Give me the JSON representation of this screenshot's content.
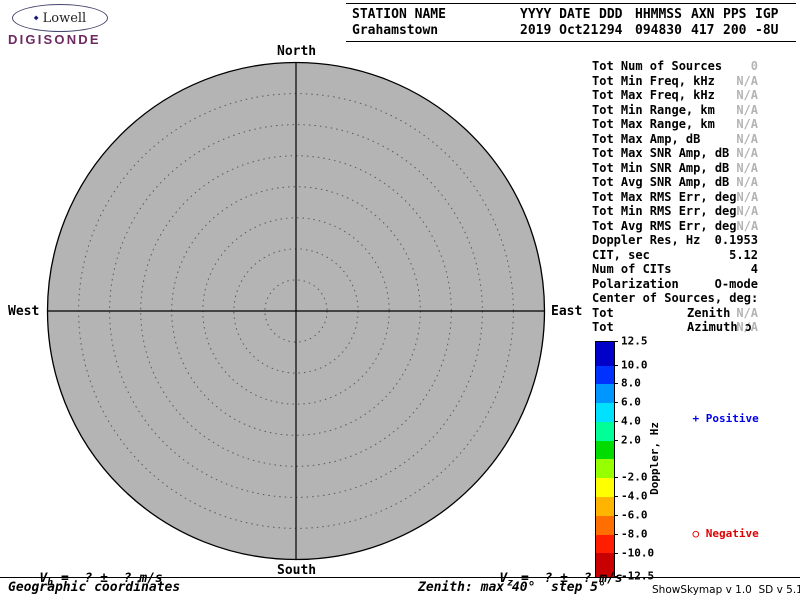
{
  "logo": {
    "mark": "◆",
    "name": "Lowell",
    "product": "DIGISONDE"
  },
  "header": {
    "fields": [
      {
        "label": "STATION NAME",
        "value": "Grahamstown"
      },
      {
        "label": "YYYY DATE",
        "value": "2019 Oct21"
      },
      {
        "label": "DDD",
        "value": "294"
      },
      {
        "label": "HHMMSS",
        "value": "094830"
      },
      {
        "label": "AXN",
        "value": "417"
      },
      {
        "label": "PPS",
        "value": "200"
      },
      {
        "label": "IGP",
        "value": "-8U"
      }
    ]
  },
  "compass": {
    "north": "North",
    "south": "South",
    "east": "East",
    "west": "West"
  },
  "skymap": {
    "fill_color": "#b4b4b4",
    "zenith_max_deg": 40,
    "zenith_step_deg": 5,
    "num_sources": 0
  },
  "stats": {
    "rows": [
      {
        "label": "Tot Num of Sources",
        "value": "0",
        "muted": true
      },
      {
        "label": "Tot Min Freq, kHz",
        "value": "N/A",
        "muted": true
      },
      {
        "label": "Tot Max Freq, kHz",
        "value": "N/A",
        "muted": true
      },
      {
        "label": "Tot Min Range, km",
        "value": "N/A",
        "muted": true
      },
      {
        "label": "Tot Max Range, km",
        "value": "N/A",
        "muted": true
      },
      {
        "label": "Tot Max Amp, dB",
        "value": "N/A",
        "muted": true
      },
      {
        "label": "Tot Max SNR Amp, dB",
        "value": "N/A",
        "muted": true
      },
      {
        "label": "Tot Min SNR Amp, dB",
        "value": "N/A",
        "muted": true
      },
      {
        "label": "Tot Avg SNR Amp, dB",
        "value": "N/A",
        "muted": true
      },
      {
        "label": "Tot Max RMS Err, deg",
        "value": "N/A",
        "muted": true
      },
      {
        "label": "Tot Min RMS Err, deg",
        "value": "N/A",
        "muted": true
      },
      {
        "label": "Tot Avg RMS Err, deg",
        "value": "N/A",
        "muted": true
      },
      {
        "label": "Doppler Res, Hz",
        "value": "0.1953",
        "muted": false
      },
      {
        "label": "CIT, sec",
        "value": "5.12",
        "muted": false
      },
      {
        "label": "Num of CITs",
        "value": "4",
        "muted": false
      },
      {
        "label": "Polarization",
        "value": "O-mode",
        "muted": false
      },
      {
        "label": "Center of Sources, deg:",
        "value": "",
        "muted": false
      },
      {
        "label": "Tot",
        "param": "Zenith",
        "value": "N/A",
        "muted": true
      },
      {
        "label": "Tot",
        "param": "Azimuth ɔ",
        "value": "N/A",
        "muted": true
      }
    ]
  },
  "colorbar": {
    "title": "Doppler, Hz",
    "max": 12.5,
    "min": -12.5,
    "segments": [
      {
        "from": 12.5,
        "to": 10.0,
        "color": "#0000c8"
      },
      {
        "from": 10.0,
        "to": 8.0,
        "color": "#0032ff"
      },
      {
        "from": 8.0,
        "to": 6.0,
        "color": "#0096ff"
      },
      {
        "from": 6.0,
        "to": 4.0,
        "color": "#00e1ff"
      },
      {
        "from": 4.0,
        "to": 2.0,
        "color": "#00ff96"
      },
      {
        "from": 2.0,
        "to": 0.0,
        "color": "#00dc00"
      },
      {
        "from": 0.0,
        "to": -2.0,
        "color": "#96ff00"
      },
      {
        "from": -2.0,
        "to": -4.0,
        "color": "#ffff00"
      },
      {
        "from": -4.0,
        "to": -6.0,
        "color": "#ffb400"
      },
      {
        "from": -6.0,
        "to": -8.0,
        "color": "#ff6e00"
      },
      {
        "from": -8.0,
        "to": -10.0,
        "color": "#ff1e00"
      },
      {
        "from": -10.0,
        "to": -12.5,
        "color": "#c80000"
      }
    ],
    "ticks": [
      {
        "v": 12.5,
        "label": "12.5"
      },
      {
        "v": 10.0,
        "label": "10.0"
      },
      {
        "v": 8.0,
        "label": "8.0"
      },
      {
        "v": 6.0,
        "label": "6.0"
      },
      {
        "v": 4.0,
        "label": "4.0"
      },
      {
        "v": 2.0,
        "label": "2.0"
      },
      {
        "v": -2.0,
        "label": "-2.0"
      },
      {
        "v": -4.0,
        "label": "-4.0"
      },
      {
        "v": -6.0,
        "label": "-6.0"
      },
      {
        "v": -8.0,
        "label": "-8.0"
      },
      {
        "v": -10.0,
        "label": "-10.0"
      },
      {
        "v": -12.5,
        "label": "-12.5"
      }
    ]
  },
  "legend": {
    "positive": {
      "marker": "+",
      "label": "Positive",
      "color": "#0000ee"
    },
    "negative": {
      "marker": "○",
      "label": "Negative",
      "color": "#e00000"
    }
  },
  "velocity": {
    "vh": {
      "symbol": "V",
      "subscript": "h",
      "rest": " =  ? ±  ? m/s"
    },
    "vz": {
      "symbol": "V",
      "subscript": "z",
      "rest": " =  ? ±  ? m/s"
    }
  },
  "footer": {
    "left": "Geographic coordinates",
    "center": "Zenith: max 40°  step 5°",
    "right": "ShowSkymap v 1.0  SD v 5.1"
  }
}
